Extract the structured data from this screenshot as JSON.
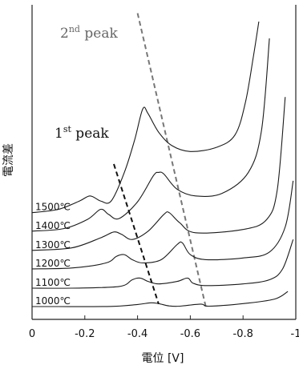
{
  "chart_data": {
    "type": "line",
    "title": "",
    "xlabel": "電位 [V]",
    "ylabel": "電流差",
    "xlim": [
      0,
      -1.0
    ],
    "x_ticks": [
      0,
      -0.2,
      -0.4,
      -0.6,
      -0.8,
      -1
    ],
    "x_tick_labels": [
      "0",
      "-0.2",
      "-0.4",
      "-0.6",
      "-0.8",
      "-1"
    ],
    "y_ticks": "none",
    "grid": false,
    "series": [
      {
        "name": "1000℃",
        "baseline": 0.0,
        "points": [
          [
            0.0,
            0.0
          ],
          [
            -0.1,
            0.0
          ],
          [
            -0.3,
            0.2
          ],
          [
            -0.4,
            2.5
          ],
          [
            -0.45,
            4.5
          ],
          [
            -0.48,
            3.5
          ],
          [
            -0.52,
            0.8
          ],
          [
            -0.56,
            0.5
          ],
          [
            -0.64,
            3.0
          ],
          [
            -0.67,
            0.5
          ],
          [
            -0.8,
            3.5
          ],
          [
            -0.92,
            9.0
          ],
          [
            -0.97,
            18
          ]
        ]
      },
      {
        "name": "1100℃",
        "baseline": 22,
        "points": [
          [
            0.0,
            22
          ],
          [
            -0.15,
            22
          ],
          [
            -0.33,
            24
          ],
          [
            -0.38,
            32
          ],
          [
            -0.41,
            34
          ],
          [
            -0.44,
            30
          ],
          [
            -0.48,
            27
          ],
          [
            -0.55,
            30
          ],
          [
            -0.59,
            34
          ],
          [
            -0.61,
            28
          ],
          [
            -0.66,
            25
          ],
          [
            -0.8,
            27
          ],
          [
            -0.9,
            32
          ],
          [
            -0.95,
            45
          ],
          [
            -0.99,
            80
          ]
        ]
      },
      {
        "name": "1200℃",
        "baseline": 45,
        "points": [
          [
            0.0,
            45
          ],
          [
            -0.15,
            46
          ],
          [
            -0.28,
            52
          ],
          [
            -0.32,
            60
          ],
          [
            -0.35,
            62
          ],
          [
            -0.38,
            56
          ],
          [
            -0.42,
            52
          ],
          [
            -0.49,
            56
          ],
          [
            -0.55,
            74
          ],
          [
            -0.57,
            76
          ],
          [
            -0.6,
            62
          ],
          [
            -0.66,
            56
          ],
          [
            -0.8,
            58
          ],
          [
            -0.9,
            65
          ],
          [
            -0.96,
            95
          ],
          [
            -0.99,
            150
          ]
        ]
      },
      {
        "name": "1300℃",
        "baseline": 67,
        "points": [
          [
            0.0,
            67
          ],
          [
            -0.15,
            70
          ],
          [
            -0.26,
            82
          ],
          [
            -0.31,
            89
          ],
          [
            -0.34,
            86
          ],
          [
            -0.38,
            80
          ],
          [
            -0.44,
            90
          ],
          [
            -0.5,
            110
          ],
          [
            -0.52,
            112
          ],
          [
            -0.56,
            100
          ],
          [
            -0.62,
            88
          ],
          [
            -0.8,
            92
          ],
          [
            -0.89,
            104
          ],
          [
            -0.93,
            140
          ],
          [
            -0.96,
            250
          ]
        ]
      },
      {
        "name": "1400℃",
        "baseline": 90,
        "points": [
          [
            0.0,
            90
          ],
          [
            -0.12,
            93
          ],
          [
            -0.21,
            104
          ],
          [
            -0.26,
            116
          ],
          [
            -0.29,
            110
          ],
          [
            -0.33,
            105
          ],
          [
            -0.4,
            125
          ],
          [
            -0.46,
            156
          ],
          [
            -0.48,
            160
          ],
          [
            -0.5,
            158
          ],
          [
            -0.55,
            140
          ],
          [
            -0.62,
            132
          ],
          [
            -0.72,
            135
          ],
          [
            -0.82,
            160
          ],
          [
            -0.87,
            210
          ],
          [
            -0.9,
            320
          ]
        ]
      },
      {
        "name": "1500℃",
        "baseline": 112,
        "points": [
          [
            0.0,
            112
          ],
          [
            -0.1,
            116
          ],
          [
            -0.18,
            126
          ],
          [
            -0.22,
            132
          ],
          [
            -0.26,
            126
          ],
          [
            -0.3,
            126
          ],
          [
            -0.35,
            160
          ],
          [
            -0.39,
            200
          ],
          [
            -0.42,
            236
          ],
          [
            -0.44,
            230
          ],
          [
            -0.48,
            208
          ],
          [
            -0.53,
            192
          ],
          [
            -0.6,
            185
          ],
          [
            -0.7,
            190
          ],
          [
            -0.77,
            205
          ],
          [
            -0.81,
            245
          ],
          [
            -0.84,
            300
          ],
          [
            -0.86,
            340
          ]
        ]
      }
    ],
    "guide_lines": [
      {
        "label": "1st peak",
        "style": "dashed",
        "color": "#111111",
        "from": [
          -0.31,
          170
        ],
        "to": [
          -0.48,
          3
        ]
      },
      {
        "label": "2nd peak",
        "style": "dashed",
        "color": "#777777",
        "from": [
          -0.4,
          350
        ],
        "to": [
          -0.66,
          -2
        ]
      }
    ],
    "annotations": [
      {
        "text_base": "1",
        "text_sup": "st",
        "text_tail": " peak",
        "color": "#111111"
      },
      {
        "text_base": "2",
        "text_sup": "nd",
        "text_tail": " peak",
        "color": "#666666"
      }
    ]
  }
}
